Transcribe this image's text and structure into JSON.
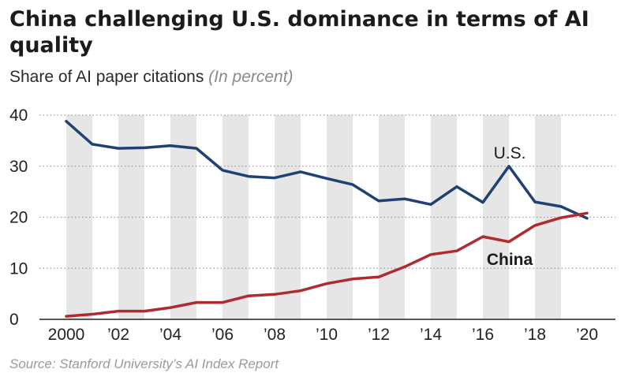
{
  "title": "China challenging U.S. dominance in terms of AI quality",
  "subtitle": "Share of AI paper citations",
  "subtitle_unit": "(In percent)",
  "source": "Source: Stanford University’s AI Index Report",
  "chart_data": {
    "type": "line",
    "title": "China challenging U.S. dominance in terms of AI quality",
    "subtitle": "Share of AI paper citations (In percent)",
    "xlabel": "",
    "ylabel": "",
    "x": [
      2000,
      2001,
      2002,
      2003,
      2004,
      2005,
      2006,
      2007,
      2008,
      2009,
      2010,
      2011,
      2012,
      2013,
      2014,
      2015,
      2016,
      2017,
      2018,
      2019,
      2020
    ],
    "xlim": [
      2000,
      2020
    ],
    "ylim": [
      0,
      40
    ],
    "yticks": [
      0,
      10,
      20,
      30,
      40
    ],
    "xtick_values": [
      2000,
      2002,
      2004,
      2006,
      2008,
      2010,
      2012,
      2014,
      2016,
      2018,
      2020
    ],
    "xtick_labels": [
      "2000",
      "’02",
      "’04",
      "’06",
      "’08",
      "’10",
      "’12",
      "’14",
      "’16",
      "’18",
      "’20"
    ],
    "grid": "alternating vertical bands",
    "series": [
      {
        "name": "U.S.",
        "color": "#1f4173",
        "values": [
          38.8,
          34.3,
          33.5,
          33.6,
          34.0,
          33.5,
          29.2,
          28.0,
          27.7,
          28.9,
          27.6,
          26.4,
          23.2,
          23.6,
          22.5,
          26.0,
          22.9,
          30.0,
          23.0,
          22.1,
          19.8
        ]
      },
      {
        "name": "China",
        "color": "#b02a2e",
        "values": [
          0.6,
          1.0,
          1.6,
          1.6,
          2.3,
          3.3,
          3.3,
          4.6,
          4.9,
          5.6,
          7.0,
          7.9,
          8.3,
          10.3,
          12.7,
          13.4,
          16.2,
          15.2,
          18.4,
          19.9,
          20.8
        ]
      }
    ]
  }
}
